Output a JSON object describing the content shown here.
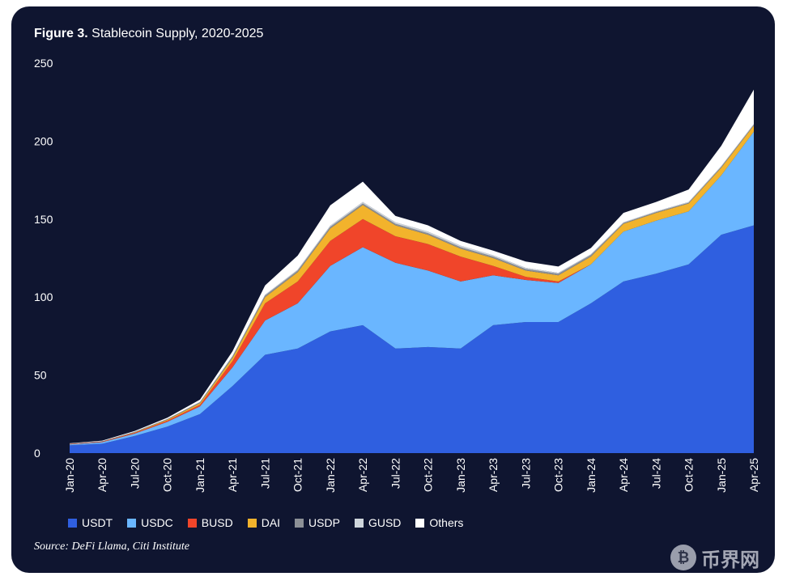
{
  "figure_label": "Figure 3.",
  "figure_title": "Stablecoin Supply, 2020-2025",
  "source": "Source: DeFi Llama, Citi Institute",
  "watermark": {
    "text": "币界网",
    "icon": "bitcoin-circle-icon"
  },
  "chart_data": {
    "type": "area",
    "stacked": true,
    "title": "Stablecoin Supply, 2020-2025",
    "xlabel": "",
    "ylabel": "",
    "ylim": [
      0,
      250
    ],
    "yticks": [
      "0",
      "50",
      "100",
      "150",
      "200",
      "250"
    ],
    "xticks": [
      "Jan-20",
      "Apr-20",
      "Jul-20",
      "Oct-20",
      "Jan-21",
      "Apr-21",
      "Jul-21",
      "Oct-21",
      "Jan-22",
      "Apr-22",
      "Jul-22",
      "Oct-22",
      "Jan-23",
      "Apr-23",
      "Jul-23",
      "Oct-23",
      "Jan-24",
      "Apr-24",
      "Jul-24",
      "Oct-24",
      "Jan-25",
      "Apr-25"
    ],
    "legend_position": "bottom",
    "grid": false,
    "series": [
      {
        "name": "USDT",
        "color": "#2f5fe0",
        "values": [
          5,
          6,
          11,
          17,
          25,
          43,
          63,
          67,
          78,
          82,
          67,
          68,
          67,
          82,
          84,
          84,
          96,
          110,
          115,
          121,
          140,
          146
        ]
      },
      {
        "name": "USDC",
        "color": "#6ab6ff",
        "values": [
          0.6,
          1,
          1.5,
          3,
          5,
          12,
          22,
          29,
          42,
          50,
          55,
          49,
          43,
          32,
          27,
          25,
          25,
          32,
          34,
          34,
          38,
          60
        ]
      },
      {
        "name": "BUSD",
        "color": "#f0452a",
        "values": [
          0.2,
          0.3,
          0.5,
          0.8,
          1,
          4,
          11,
          14,
          16,
          18,
          17,
          17,
          16,
          6,
          2,
          1,
          0,
          0,
          0,
          0,
          0,
          0
        ]
      },
      {
        "name": "DAI",
        "color": "#f2b32c",
        "values": [
          0.1,
          0.1,
          0.3,
          0.6,
          1,
          2,
          4,
          6,
          8,
          9,
          7,
          6,
          5,
          5,
          4,
          4,
          5,
          5,
          5,
          5,
          5,
          4
        ]
      },
      {
        "name": "USDP",
        "color": "#8c9096",
        "values": [
          0.1,
          0.2,
          0.3,
          0.4,
          0.6,
          1,
          1,
          1,
          1,
          1,
          1,
          1,
          1,
          1,
          1,
          1,
          1,
          0.5,
          0.5,
          0.5,
          0.5,
          0.5
        ]
      },
      {
        "name": "GUSD",
        "color": "#cfd6dc",
        "values": [
          0,
          0,
          0.1,
          0.1,
          0.2,
          0.3,
          0.5,
          0.6,
          0.8,
          1,
          1,
          1,
          1,
          0.8,
          0.8,
          0.6,
          0.5,
          0.5,
          0.5,
          0.5,
          0.5,
          0.5
        ]
      },
      {
        "name": "Others",
        "color": "#ffffff",
        "values": [
          0.3,
          0.4,
          0.5,
          0.8,
          1.5,
          3,
          6,
          9,
          13,
          13,
          4,
          4,
          3,
          3,
          4,
          4,
          4,
          6,
          6,
          8,
          13,
          22
        ]
      }
    ]
  }
}
